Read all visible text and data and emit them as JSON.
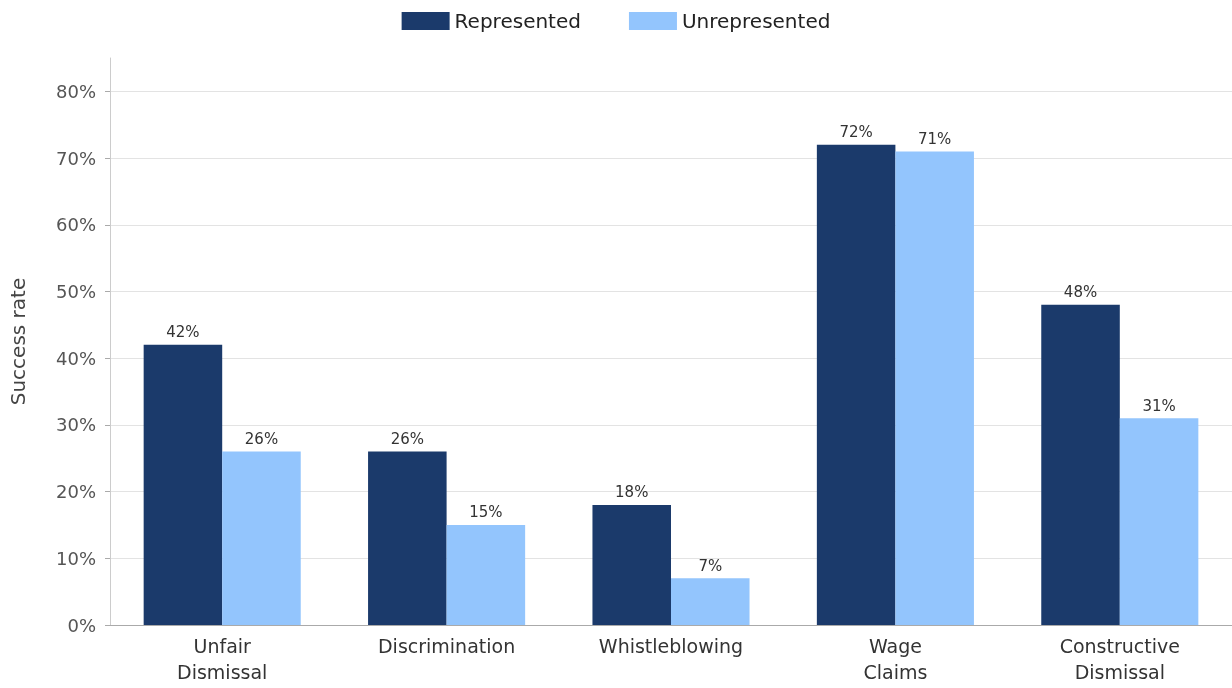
{
  "chart_data": {
    "type": "bar",
    "ylabel": "Success rate",
    "categories": [
      "Unfair Dismissal",
      "Discrimination",
      "Whistleblowing",
      "Wage Claims",
      "Constructive Dismissal"
    ],
    "series": [
      {
        "name": "Represented",
        "color": "#1b3a6b",
        "values": [
          42,
          26,
          18,
          72,
          48
        ],
        "value_labels": [
          "42%",
          "26%",
          "18%",
          "72%",
          "48%"
        ]
      },
      {
        "name": "Unrepresented",
        "color": "#93c5fd",
        "values": [
          26,
          15,
          7,
          71,
          31
        ],
        "value_labels": [
          "26%",
          "15%",
          "7%",
          "71%",
          "31%"
        ]
      }
    ],
    "ylim": [
      0,
      85
    ],
    "yticks": [
      {
        "value": 0,
        "label": "0%"
      },
      {
        "value": 10,
        "label": "10%"
      },
      {
        "value": 20,
        "label": "20%"
      },
      {
        "value": 30,
        "label": "30%"
      },
      {
        "value": 40,
        "label": "40%"
      },
      {
        "value": 50,
        "label": "50%"
      },
      {
        "value": 60,
        "label": "60%"
      },
      {
        "value": 70,
        "label": "70%"
      },
      {
        "value": 80,
        "label": "80%"
      }
    ],
    "grid": "y",
    "legend": "top"
  }
}
